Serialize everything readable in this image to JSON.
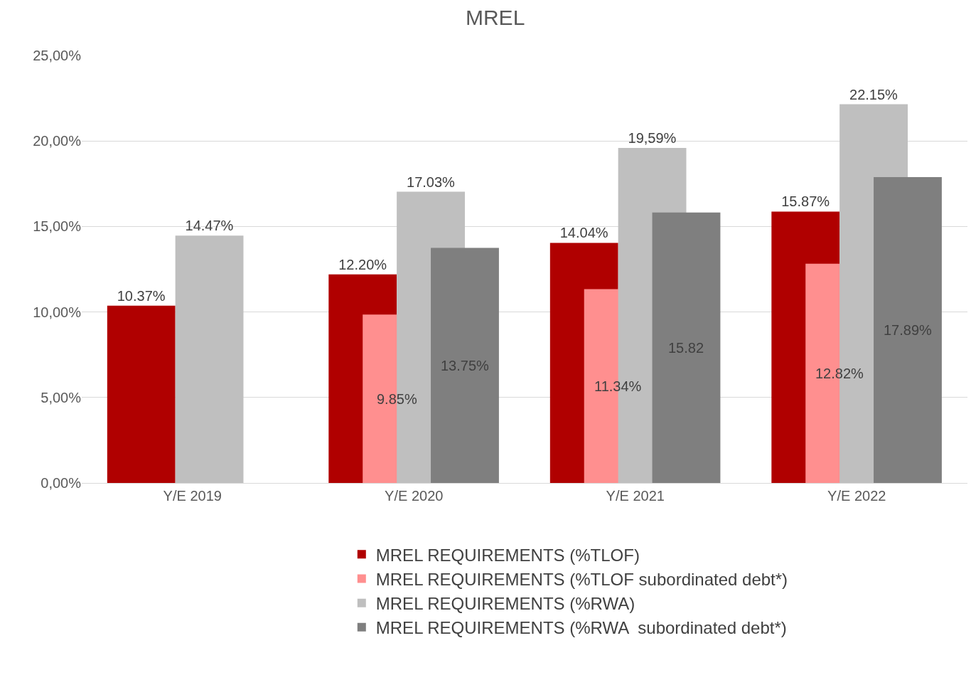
{
  "chart_data": {
    "type": "bar",
    "title": "MREL",
    "categories": [
      "Y/E 2019",
      "Y/E 2020",
      "Y/E 2021",
      "Y/E 2022"
    ],
    "series": [
      {
        "name": "MREL REQUIREMENTS (%TLOF)",
        "color": "#b00000",
        "values": [
          10.37,
          12.2,
          14.04,
          15.87
        ],
        "value_labels": [
          "10.37%",
          "12.20%",
          "14.04%",
          "15.87%"
        ]
      },
      {
        "name": "MREL REQUIREMENTS (%TLOF subordinated debt*)",
        "color": "#ff8f8f",
        "values": [
          null,
          9.85,
          11.34,
          12.82
        ],
        "value_labels": [
          null,
          "9.85%",
          "11.34%",
          "12.82%"
        ]
      },
      {
        "name": "MREL REQUIREMENTS (%RWA)",
        "color": "#bfbfbf",
        "values": [
          14.47,
          17.03,
          19.59,
          22.15
        ],
        "value_labels": [
          "14.47%",
          "17.03%",
          "19,59%",
          "22.15%"
        ]
      },
      {
        "name": "MREL REQUIREMENTS (%RWA  subordinated debt*)",
        "color": "#7f7f7f",
        "values": [
          null,
          13.75,
          15.82,
          17.89
        ],
        "value_labels": [
          null,
          "13.75%",
          "15.82",
          "17.89%"
        ]
      }
    ],
    "ylim": [
      0,
      25
    ],
    "yticks": [
      {
        "value": 0,
        "label": "0,00%"
      },
      {
        "value": 5,
        "label": "5,00%"
      },
      {
        "value": 10,
        "label": "10,00%"
      },
      {
        "value": 15,
        "label": "15,00%"
      },
      {
        "value": 20,
        "label": "20,00%"
      },
      {
        "value": 25,
        "label": "25,00%"
      }
    ],
    "grid": "y",
    "legend": "bottom"
  }
}
